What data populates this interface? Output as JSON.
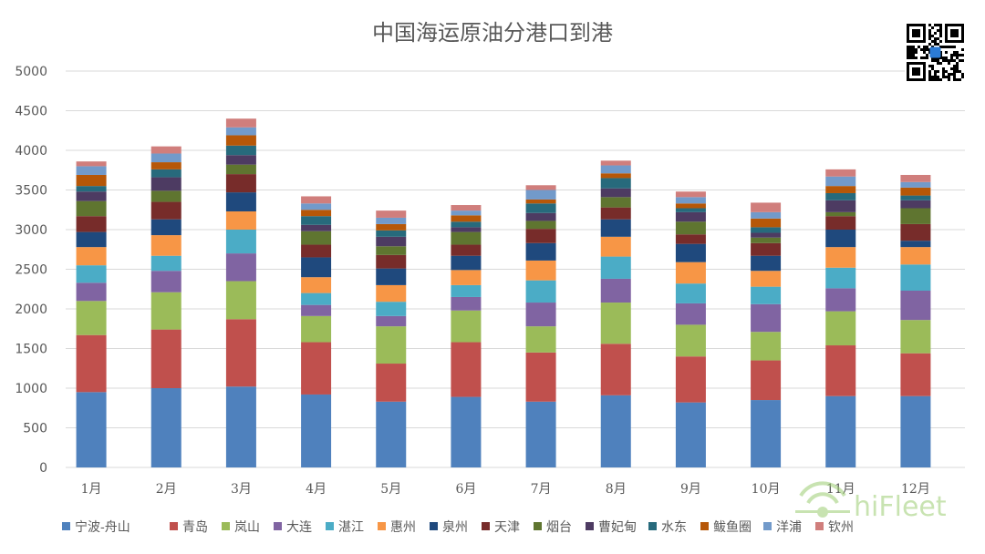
{
  "chart_data": {
    "type": "bar",
    "stacked": true,
    "title": "中国海运原油分港口到港",
    "categories": [
      "1月",
      "2月",
      "3月",
      "4月",
      "5月",
      "6月",
      "7月",
      "8月",
      "9月",
      "10月",
      "11月",
      "12月"
    ],
    "ylim": [
      0,
      5000
    ],
    "yticks": [
      0,
      500,
      1000,
      1500,
      2000,
      2500,
      3000,
      3500,
      4000,
      4500,
      5000
    ],
    "grid": true,
    "legend_position": "bottom",
    "series": [
      {
        "name": "宁波-舟山",
        "color": "#4f81bd",
        "values": [
          950,
          1000,
          1020,
          920,
          830,
          890,
          830,
          910,
          820,
          850,
          900,
          900
        ]
      },
      {
        "name": "青岛",
        "color": "#c0504d",
        "values": [
          720,
          740,
          850,
          660,
          480,
          690,
          620,
          650,
          580,
          500,
          640,
          540
        ]
      },
      {
        "name": "岚山",
        "color": "#9bbb59",
        "values": [
          430,
          470,
          480,
          330,
          470,
          400,
          330,
          520,
          400,
          360,
          430,
          420
        ]
      },
      {
        "name": "大连",
        "color": "#8064a2",
        "values": [
          230,
          270,
          350,
          140,
          130,
          170,
          300,
          300,
          270,
          350,
          290,
          370
        ]
      },
      {
        "name": "湛江",
        "color": "#4bacc6",
        "values": [
          220,
          190,
          300,
          150,
          180,
          150,
          280,
          280,
          250,
          220,
          260,
          330
        ]
      },
      {
        "name": "惠州",
        "color": "#f79646",
        "values": [
          230,
          260,
          230,
          200,
          210,
          190,
          250,
          250,
          270,
          200,
          260,
          220
        ]
      },
      {
        "name": "泉州",
        "color": "#1f497d",
        "values": [
          190,
          200,
          240,
          250,
          210,
          180,
          220,
          220,
          230,
          190,
          220,
          80
        ]
      },
      {
        "name": "天津",
        "color": "#772c2a",
        "values": [
          200,
          220,
          230,
          160,
          170,
          140,
          180,
          150,
          120,
          160,
          170,
          210
        ]
      },
      {
        "name": "烟台",
        "color": "#5f7530",
        "values": [
          190,
          140,
          120,
          170,
          110,
          160,
          100,
          130,
          160,
          70,
          50,
          200
        ]
      },
      {
        "name": "曹妃甸",
        "color": "#4d3b62",
        "values": [
          120,
          170,
          120,
          80,
          120,
          60,
          100,
          110,
          120,
          60,
          150,
          100
        ]
      },
      {
        "name": "水东",
        "color": "#276a7c",
        "values": [
          70,
          100,
          120,
          110,
          80,
          70,
          120,
          130,
          50,
          70,
          90,
          60
        ]
      },
      {
        "name": "鲅鱼圈",
        "color": "#b65708",
        "values": [
          140,
          90,
          130,
          80,
          80,
          80,
          50,
          60,
          60,
          110,
          90,
          100
        ]
      },
      {
        "name": "洋浦",
        "color": "#729aca",
        "values": [
          110,
          110,
          100,
          80,
          80,
          60,
          120,
          100,
          80,
          80,
          120,
          70
        ]
      },
      {
        "name": "钦州",
        "color": "#d07e7c",
        "values": [
          60,
          90,
          110,
          90,
          90,
          70,
          60,
          60,
          70,
          120,
          90,
          90
        ]
      }
    ]
  },
  "watermark": {
    "brand": "hiFleet"
  },
  "qr_code": {
    "icon": "qr-code-icon"
  }
}
